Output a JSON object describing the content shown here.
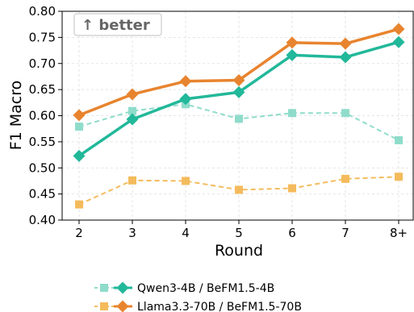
{
  "chart_data": {
    "type": "line",
    "xlabel": "Round",
    "ylabel": "F1 Macro",
    "categories": [
      "2",
      "3",
      "4",
      "5",
      "6",
      "7",
      "8+"
    ],
    "ylim": [
      0.4,
      0.8
    ],
    "yticks": [
      "0.40",
      "0.45",
      "0.50",
      "0.55",
      "0.60",
      "0.65",
      "0.70",
      "0.75",
      "0.80"
    ],
    "grid": true,
    "annotation": "↑ better",
    "legend_position": "bottom",
    "series": [
      {
        "name": "Qwen3-4B",
        "group": "Qwen3-4B / BeFM1.5-4B",
        "style": "dashed",
        "marker": "square",
        "color": "#8fdccb",
        "values": [
          0.579,
          0.609,
          0.622,
          0.594,
          0.605,
          0.605,
          0.553
        ]
      },
      {
        "name": "BeFM1.5-4B",
        "group": "Qwen3-4B / BeFM1.5-4B",
        "style": "solid",
        "marker": "diamond",
        "color": "#22b89a",
        "values": [
          0.523,
          0.593,
          0.632,
          0.645,
          0.716,
          0.712,
          0.741
        ]
      },
      {
        "name": "Llama3.3-70B",
        "group": "Llama3.3-70B / BeFM1.5-70B",
        "style": "dashed",
        "marker": "square",
        "color": "#f4bb5c",
        "values": [
          0.43,
          0.476,
          0.475,
          0.458,
          0.461,
          0.479,
          0.483
        ]
      },
      {
        "name": "BeFM1.5-70B",
        "group": "Llama3.3-70B / BeFM1.5-70B",
        "style": "solid",
        "marker": "diamond",
        "color": "#e8842f",
        "values": [
          0.601,
          0.641,
          0.666,
          0.668,
          0.74,
          0.738,
          0.766
        ]
      }
    ],
    "legend": [
      {
        "label": "Qwen3-4B / BeFM1.5-4B",
        "base_color": "#8fdccb",
        "ft_color": "#22b89a"
      },
      {
        "label": "Llama3.3-70B / BeFM1.5-70B",
        "base_color": "#f4bb5c",
        "ft_color": "#e8842f"
      }
    ]
  }
}
